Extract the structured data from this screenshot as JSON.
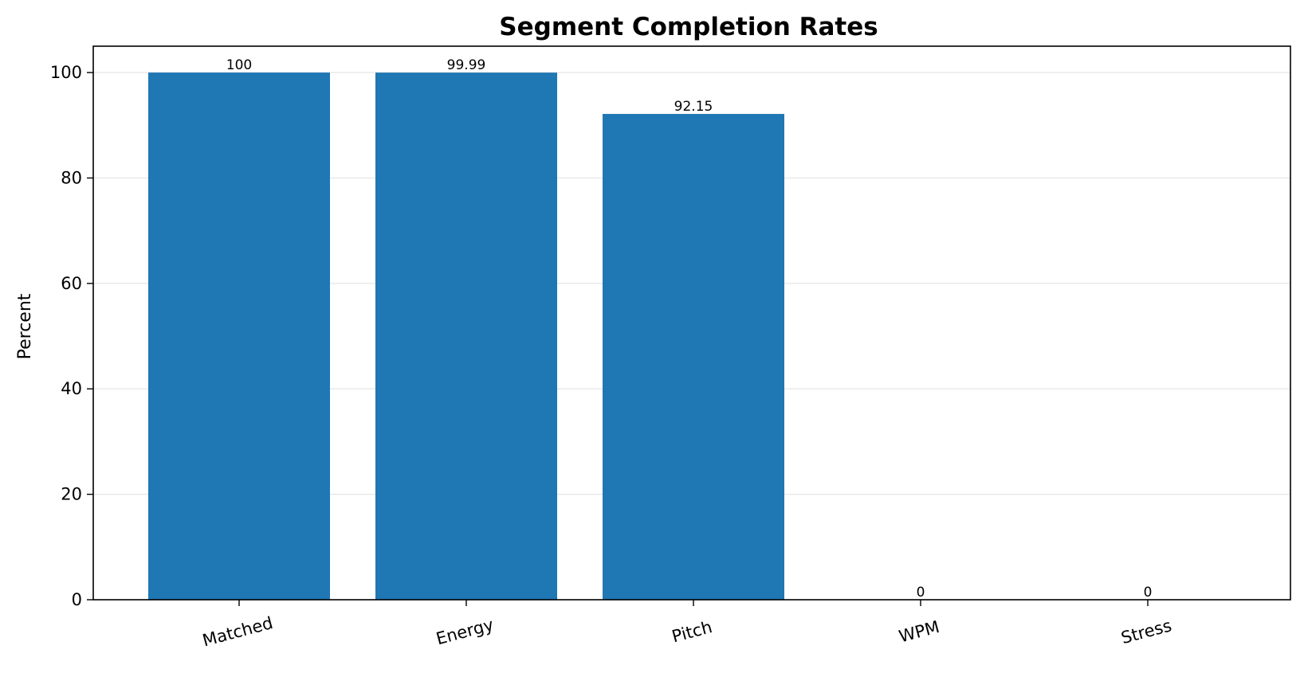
{
  "chart_data": {
    "type": "bar",
    "title": "Segment Completion Rates",
    "xlabel": "",
    "ylabel": "Percent",
    "categories": [
      "Matched",
      "Energy",
      "Pitch",
      "WPM",
      "Stress"
    ],
    "values": [
      100,
      99.99,
      92.15,
      0,
      0
    ],
    "data_labels": [
      "100",
      "99.99",
      "92.15",
      "0",
      "0"
    ],
    "ylim": [
      0,
      105
    ],
    "yticks": [
      0,
      20,
      40,
      60,
      80,
      100
    ],
    "grid": "y",
    "bar_color": "#1f77b4",
    "xtick_rotation": -15
  }
}
